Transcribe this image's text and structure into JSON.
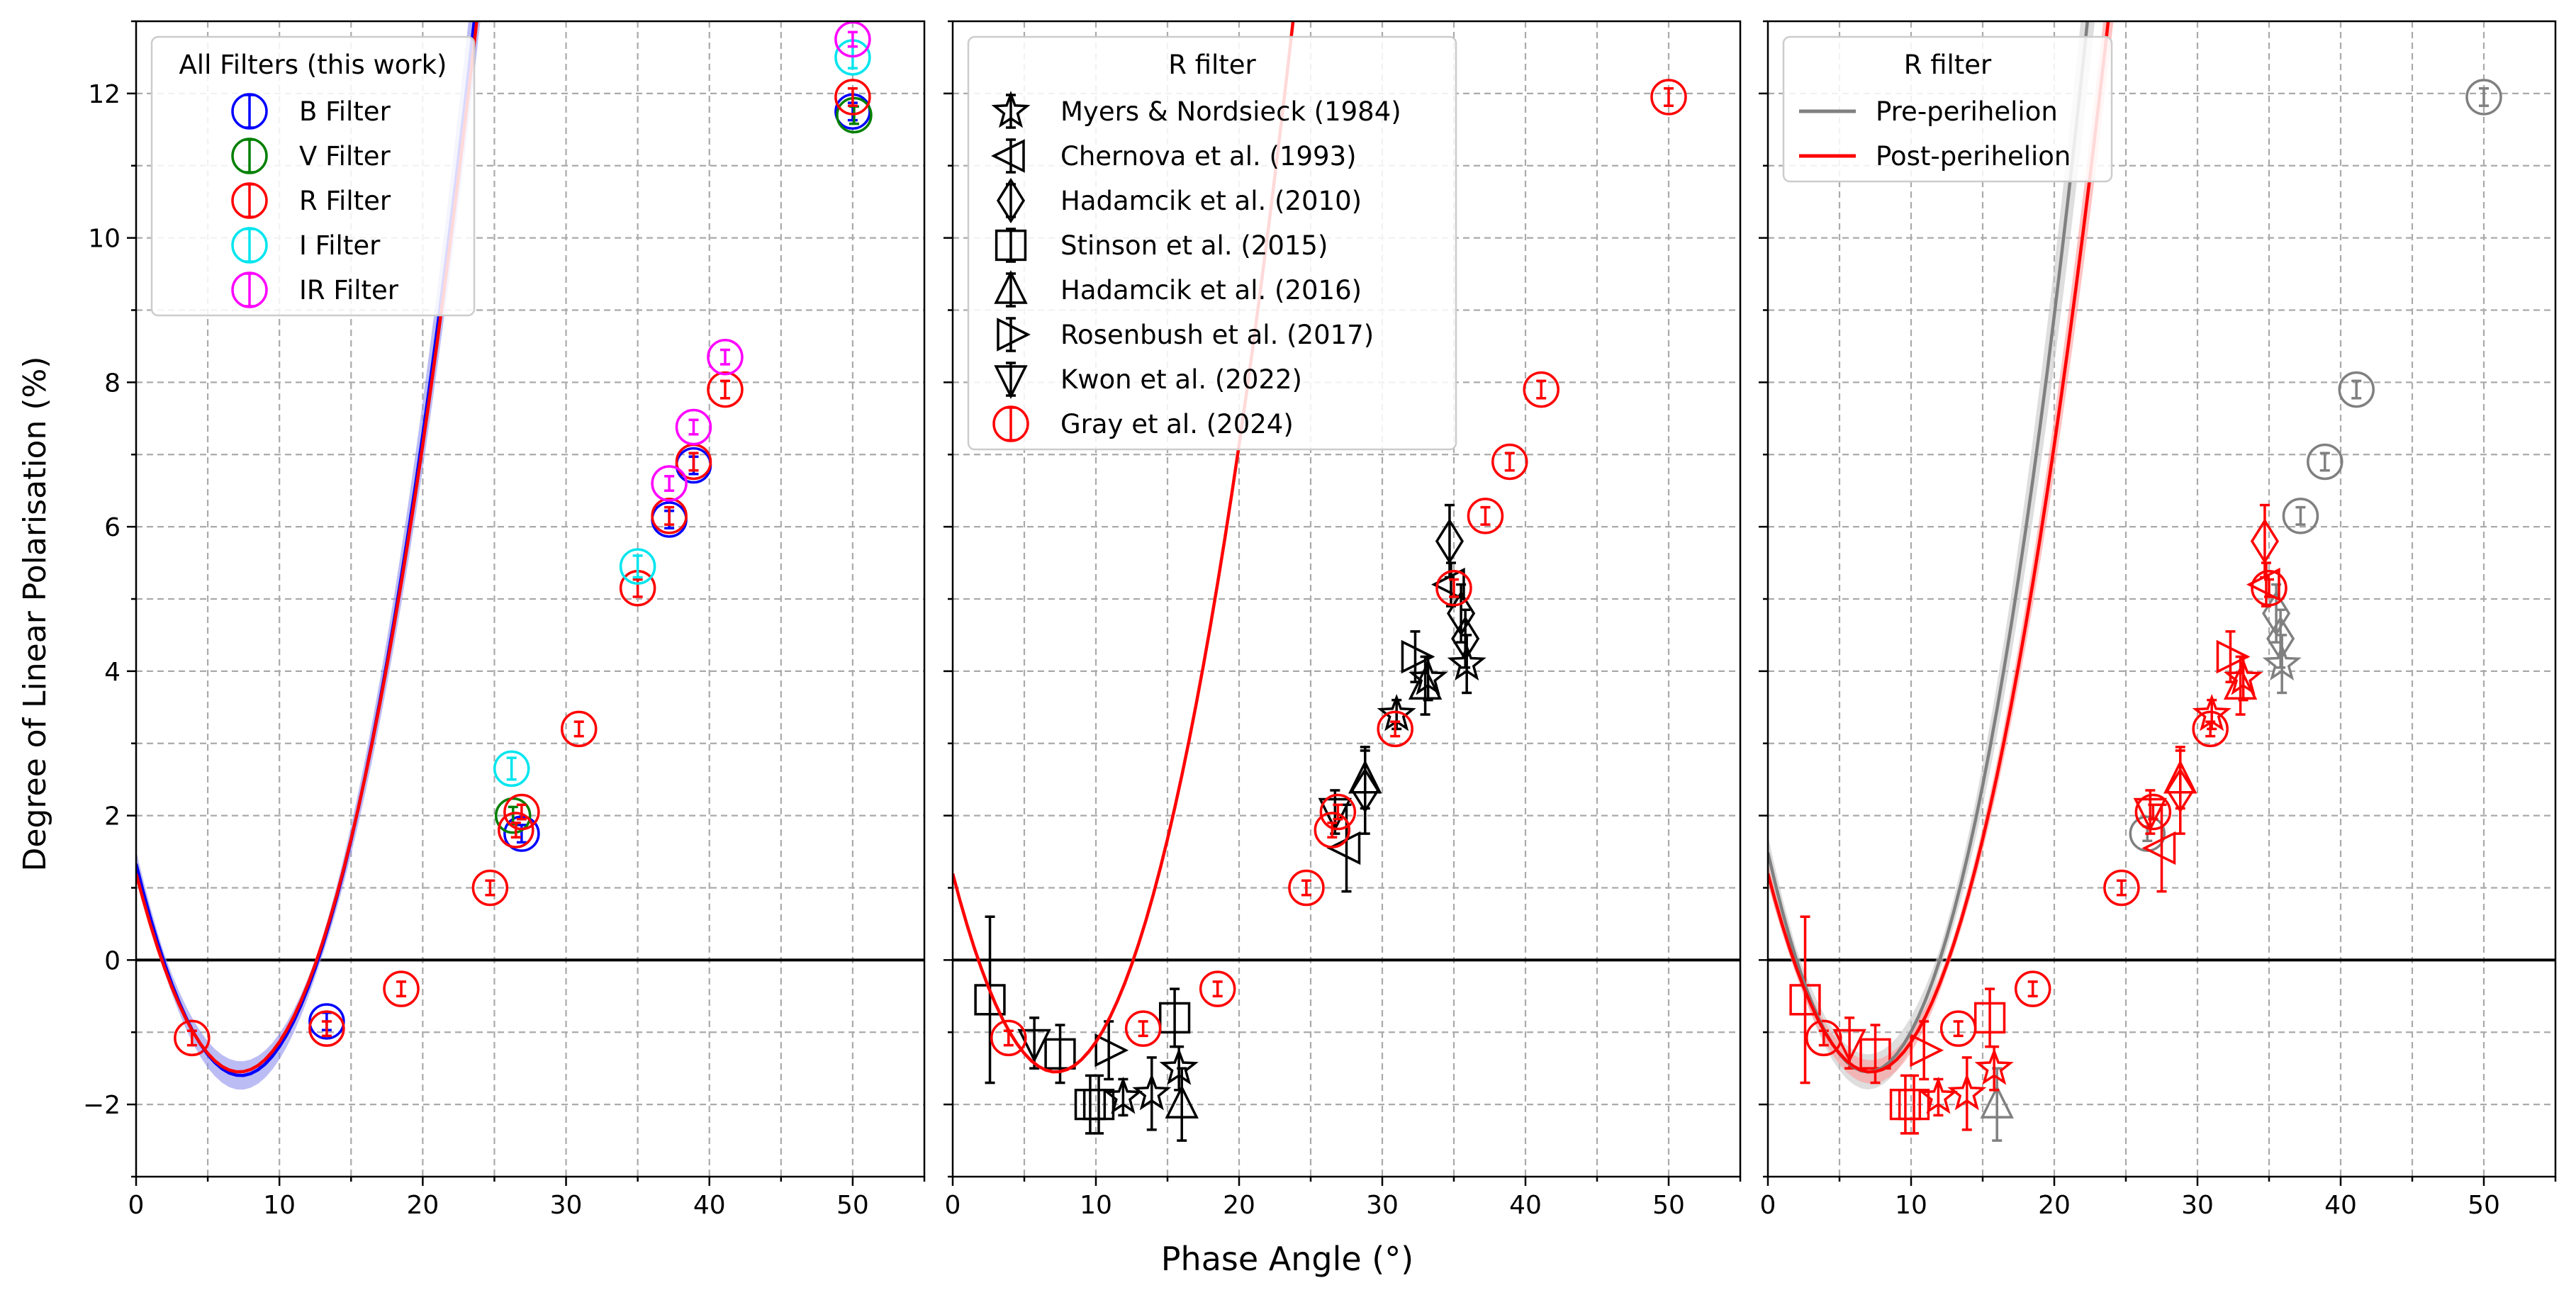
{
  "figure": {
    "ylabel": "Degree of Linear Polarisation (%)",
    "xlabel": "Phase Angle (°)",
    "x_ticks": [
      "0",
      "10",
      "20",
      "30",
      "40",
      "50"
    ],
    "y_ticks": [
      "−2",
      "0",
      "2",
      "4",
      "6",
      "8",
      "10",
      "12"
    ]
  },
  "chart_data": [
    {
      "type": "scatter",
      "panel": "left",
      "xlim": [
        0,
        55
      ],
      "ylim": [
        -3,
        13
      ],
      "grid": true,
      "legend_position": "top-left",
      "legend_title": "All Filters (this work)",
      "series": [
        {
          "name": "B Filter",
          "color": "#0000ff",
          "marker": "circle",
          "points": [
            [
              13.3,
              -0.85,
              0.12
            ],
            [
              26.9,
              1.75,
              0.12
            ],
            [
              37.2,
              6.1,
              0.12
            ],
            [
              38.9,
              6.85,
              0.12
            ],
            [
              50.0,
              11.75,
              0.12
            ]
          ]
        },
        {
          "name": "V Filter",
          "color": "#008000",
          "marker": "circle",
          "points": [
            [
              26.3,
              2.0,
              0.12
            ],
            [
              50.1,
              11.7,
              0.12
            ]
          ]
        },
        {
          "name": "R Filter",
          "color": "#ff0000",
          "marker": "circle",
          "points": [
            [
              3.9,
              -1.08,
              0.1
            ],
            [
              13.3,
              -0.95,
              0.1
            ],
            [
              18.5,
              -0.4,
              0.1
            ],
            [
              24.7,
              1.0,
              0.1
            ],
            [
              26.5,
              1.8,
              0.1
            ],
            [
              26.9,
              2.05,
              0.1
            ],
            [
              30.9,
              3.2,
              0.1
            ],
            [
              35.0,
              5.15,
              0.12
            ],
            [
              37.2,
              6.15,
              0.12
            ],
            [
              38.9,
              6.9,
              0.12
            ],
            [
              41.1,
              7.9,
              0.12
            ],
            [
              50.0,
              11.95,
              0.12
            ]
          ]
        },
        {
          "name": "I Filter",
          "color": "#00e5ee",
          "marker": "circle",
          "points": [
            [
              26.2,
              2.65,
              0.15
            ],
            [
              35.0,
              5.45,
              0.15
            ],
            [
              50.0,
              12.5,
              0.15
            ]
          ]
        },
        {
          "name": "IR Filter",
          "color": "#ff00ff",
          "marker": "circle",
          "points": [
            [
              37.2,
              6.6,
              0.1
            ],
            [
              38.9,
              7.38,
              0.1
            ],
            [
              41.1,
              8.35,
              0.1
            ],
            [
              50.0,
              12.75,
              0.1
            ]
          ]
        }
      ],
      "fits": [
        {
          "name": "B fit",
          "color": "#0000ff",
          "band_color": "#9090ee",
          "a": 5.5,
          "b": 7.3,
          "c": 1.6,
          "band": 0.12
        },
        {
          "name": "R fit",
          "color": "#ff0000",
          "a": 5.3,
          "b": 7.2,
          "c": 1.55
        }
      ]
    },
    {
      "type": "scatter",
      "panel": "middle",
      "xlim": [
        0,
        55
      ],
      "ylim": [
        -3,
        13
      ],
      "grid": true,
      "legend_position": "top-left",
      "legend_title": "R filter",
      "series": [
        {
          "name": "Myers & Nordsieck (1984)",
          "color": "#000000",
          "marker": "star",
          "points": [
            [
              11.9,
              -1.9,
              0.25
            ],
            [
              13.9,
              -1.85,
              0.5
            ],
            [
              15.8,
              -1.5,
              0.3
            ],
            [
              31.0,
              3.4,
              0.2
            ],
            [
              33.2,
              3.9,
              0.3
            ],
            [
              35.9,
              4.1,
              0.4
            ]
          ]
        },
        {
          "name": "Chernova et al. (1993)",
          "color": "#000000",
          "marker": "tri-left",
          "points": [
            [
              27.5,
              1.55,
              0.6
            ],
            [
              34.8,
              5.2,
              0.3
            ]
          ]
        },
        {
          "name": "Hadamcik et al. (2010)",
          "color": "#000000",
          "marker": "diamond",
          "points": [
            [
              28.8,
              2.35,
              0.6
            ],
            [
              34.7,
              5.8,
              0.5
            ],
            [
              35.5,
              4.8,
              0.4
            ],
            [
              35.8,
              4.45,
              0.4
            ]
          ]
        },
        {
          "name": "Stinson et al. (2015)",
          "color": "#000000",
          "marker": "square",
          "points": [
            [
              2.6,
              -0.55,
              1.15
            ],
            [
              7.5,
              -1.3,
              0.4
            ],
            [
              9.6,
              -2.0,
              0.4
            ],
            [
              10.2,
              -2.0,
              0.4
            ],
            [
              15.5,
              -0.8,
              0.4
            ]
          ]
        },
        {
          "name": "Hadamcik et al. (2016)",
          "color": "#000000",
          "marker": "tri-up",
          "points": [
            [
              16.0,
              -2.0,
              0.5
            ],
            [
              28.8,
              2.5,
              0.4
            ],
            [
              33.0,
              3.8,
              0.4
            ]
          ]
        },
        {
          "name": "Rosenbush et al. (2017)",
          "color": "#000000",
          "marker": "tri-right",
          "points": [
            [
              10.9,
              -1.25,
              0.4
            ],
            [
              32.3,
              4.2,
              0.35
            ]
          ]
        },
        {
          "name": "Kwon et al. (2022)",
          "color": "#000000",
          "marker": "tri-down",
          "points": [
            [
              5.7,
              -1.15,
              0.35
            ],
            [
              26.7,
              2.05,
              0.3
            ]
          ]
        },
        {
          "name": "Gray et al. (2024)",
          "color": "#ff0000",
          "marker": "circle",
          "points": [
            [
              3.9,
              -1.08,
              0.1
            ],
            [
              13.3,
              -0.95,
              0.1
            ],
            [
              18.5,
              -0.4,
              0.1
            ],
            [
              24.7,
              1.0,
              0.1
            ],
            [
              26.5,
              1.8,
              0.1
            ],
            [
              26.9,
              2.05,
              0.1
            ],
            [
              30.9,
              3.2,
              0.1
            ],
            [
              35.0,
              5.15,
              0.12
            ],
            [
              37.2,
              6.15,
              0.12
            ],
            [
              38.9,
              6.9,
              0.12
            ],
            [
              41.1,
              7.9,
              0.12
            ],
            [
              50.0,
              11.95,
              0.12
            ]
          ]
        }
      ],
      "fits": [
        {
          "name": "R fit",
          "color": "#ff0000",
          "a": 5.3,
          "b": 7.2,
          "c": 1.55
        }
      ]
    },
    {
      "type": "scatter",
      "panel": "right",
      "xlim": [
        0,
        55
      ],
      "ylim": [
        -3,
        13
      ],
      "grid": true,
      "legend_position": "top-left",
      "legend_title": "R filter",
      "legend_entries": [
        {
          "name": "Pre-perihelion",
          "color": "#808080"
        },
        {
          "name": "Post-perihelion",
          "color": "#ff0000"
        }
      ],
      "series": [
        {
          "name": "Pre-perihelion points",
          "color": "#808080",
          "marker": "mixed",
          "points": [
            [
              16.0,
              -2.0,
              0.5,
              "tri-up"
            ],
            [
              26.5,
              1.75,
              0.1,
              "circle"
            ],
            [
              35.5,
              4.8,
              0.4,
              "diamond"
            ],
            [
              35.8,
              4.45,
              0.4,
              "diamond"
            ],
            [
              35.9,
              4.1,
              0.4,
              "star"
            ],
            [
              37.2,
              6.15,
              0.12,
              "circle"
            ],
            [
              38.9,
              6.9,
              0.12,
              "circle"
            ],
            [
              41.1,
              7.9,
              0.12,
              "circle"
            ],
            [
              50.0,
              11.95,
              0.12,
              "circle"
            ]
          ]
        },
        {
          "name": "Post-perihelion points",
          "color": "#ff0000",
          "marker": "mixed",
          "points": [
            [
              2.6,
              -0.55,
              1.15,
              "square"
            ],
            [
              3.9,
              -1.08,
              0.1,
              "circle"
            ],
            [
              5.7,
              -1.15,
              0.35,
              "tri-down"
            ],
            [
              7.5,
              -1.3,
              0.4,
              "square"
            ],
            [
              9.6,
              -2.0,
              0.4,
              "square"
            ],
            [
              10.2,
              -2.0,
              0.4,
              "square"
            ],
            [
              10.9,
              -1.25,
              0.4,
              "tri-right"
            ],
            [
              11.9,
              -1.9,
              0.25,
              "star"
            ],
            [
              13.3,
              -0.95,
              0.1,
              "circle"
            ],
            [
              13.9,
              -1.85,
              0.5,
              "star"
            ],
            [
              15.5,
              -0.8,
              0.4,
              "square"
            ],
            [
              15.8,
              -1.5,
              0.3,
              "star"
            ],
            [
              18.5,
              -0.4,
              0.1,
              "circle"
            ],
            [
              24.7,
              1.0,
              0.1,
              "circle"
            ],
            [
              26.7,
              2.05,
              0.3,
              "tri-down"
            ],
            [
              26.9,
              2.05,
              0.1,
              "circle"
            ],
            [
              27.5,
              1.55,
              0.6,
              "tri-left"
            ],
            [
              28.8,
              2.35,
              0.6,
              "diamond"
            ],
            [
              28.8,
              2.5,
              0.4,
              "tri-up"
            ],
            [
              30.9,
              3.2,
              0.1,
              "circle"
            ],
            [
              31.0,
              3.4,
              0.2,
              "star"
            ],
            [
              32.3,
              4.2,
              0.35,
              "tri-right"
            ],
            [
              33.0,
              3.8,
              0.4,
              "tri-up"
            ],
            [
              33.2,
              3.9,
              0.3,
              "star"
            ],
            [
              34.7,
              5.8,
              0.5,
              "diamond"
            ],
            [
              34.8,
              5.2,
              0.3,
              "tri-left"
            ],
            [
              35.0,
              5.15,
              0.12,
              "circle"
            ]
          ]
        }
      ],
      "fits": [
        {
          "name": "Pre-perihelion fit",
          "color": "#808080",
          "band_color": "#c8c8c8",
          "a": 6.2,
          "b": 7.0,
          "c": 1.55,
          "band": 0.15
        },
        {
          "name": "Post-perihelion fit",
          "color": "#ff0000",
          "band_color": "#ff9a9a",
          "a": 5.3,
          "b": 7.2,
          "c": 1.55,
          "band": 0.1
        }
      ]
    }
  ]
}
